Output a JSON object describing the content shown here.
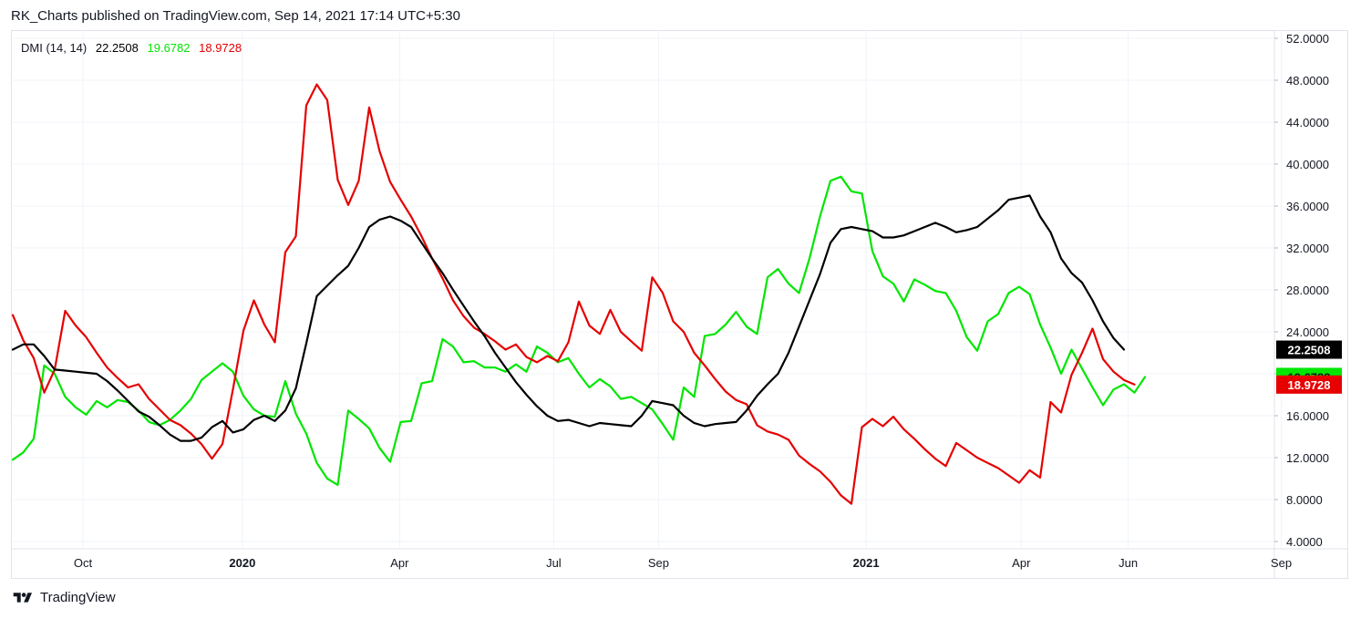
{
  "header": {
    "text": "RK_Charts published on TradingView.com, Sep 14, 2021 17:14 UTC+5:30"
  },
  "legend": {
    "name": "DMI (14, 14)",
    "adx": "22.2508",
    "plus_di": "19.6782",
    "minus_di": "18.9728"
  },
  "footer": {
    "brand": "TradingView"
  },
  "colors": {
    "adx": "#000000",
    "plus_di": "#00e600",
    "minus_di": "#e60000",
    "grid": "#f0f3fa",
    "border": "#e0e3eb"
  },
  "chart_data": {
    "type": "line",
    "ylim": [
      3,
      53
    ],
    "xlim": [
      0,
      140
    ],
    "yticks": [
      4,
      8,
      12,
      16,
      20,
      24,
      28,
      32,
      36,
      40,
      44,
      48,
      52
    ],
    "ytick_labels": [
      "4.0000",
      "8.0000",
      "12.0000",
      "16.0000",
      "20.0000",
      "24.0000",
      "28.0000",
      "32.0000",
      "36.0000",
      "40.0000",
      "44.0000",
      "48.0000",
      "52.0000"
    ],
    "xticks": [
      {
        "label": "Oct",
        "x": 6.7,
        "bold": false
      },
      {
        "label": "2020",
        "x": 21.9,
        "bold": true
      },
      {
        "label": "Apr",
        "x": 36.9,
        "bold": false
      },
      {
        "label": "Jul",
        "x": 51.6,
        "bold": false
      },
      {
        "label": "Sep",
        "x": 61.6,
        "bold": false
      },
      {
        "label": "2021",
        "x": 81.4,
        "bold": true
      },
      {
        "label": "Apr",
        "x": 96.2,
        "bold": false
      },
      {
        "label": "Jun",
        "x": 106.4,
        "bold": false
      },
      {
        "label": "Sep",
        "x": 121.0,
        "bold": false
      }
    ],
    "legend_position": "top-left",
    "grid": true,
    "series": [
      {
        "key": "adx",
        "values": [
          22.3,
          22.8,
          22.8,
          21.7,
          20.4,
          20.3,
          20.2,
          20.1,
          20.0,
          19.3,
          18.4,
          17.4,
          16.4,
          15.9,
          15.1,
          14.2,
          13.6,
          13.6,
          13.9,
          14.9,
          15.5,
          14.4,
          14.7,
          15.6,
          16.0,
          15.5,
          16.5,
          18.6,
          22.9,
          27.4,
          28.4,
          29.4,
          30.3,
          32.0,
          34.0,
          34.7,
          35.0,
          34.6,
          34.0,
          32.5,
          31.0,
          29.6,
          28.0,
          26.5,
          25.0,
          23.6,
          22.0,
          20.6,
          19.2,
          18.0,
          16.9,
          16.0,
          15.5,
          15.6,
          15.3,
          15.0,
          15.3,
          15.2,
          15.1,
          15.0,
          16.0,
          17.4,
          17.2,
          17.0,
          16.0,
          15.3,
          15.0,
          15.2,
          15.3,
          15.4,
          16.5,
          17.9,
          19.0,
          20.0,
          22.0,
          24.5,
          27.0,
          29.5,
          32.5,
          33.8,
          34.0,
          33.8,
          33.6,
          33.0,
          33.0,
          33.2,
          33.6,
          34.0,
          34.4,
          34.0,
          33.5,
          33.7,
          34.0,
          34.8,
          35.6,
          36.6,
          36.8,
          37.0,
          35.0,
          33.5,
          31.0,
          29.6,
          28.7,
          27.0,
          25.0,
          23.4,
          22.3
        ]
      },
      {
        "key": "plus_di",
        "values": [
          11.8,
          12.5,
          13.8,
          20.8,
          20.0,
          17.8,
          16.8,
          16.1,
          17.4,
          16.8,
          17.5,
          17.3,
          16.5,
          15.4,
          15.1,
          15.6,
          16.5,
          17.6,
          19.4,
          20.2,
          21.0,
          20.2,
          17.9,
          16.6,
          16.0,
          15.9,
          19.3,
          16.2,
          14.3,
          11.5,
          10.0,
          9.4,
          16.5,
          15.7,
          14.8,
          12.9,
          11.6,
          15.4,
          15.5,
          19.1,
          19.3,
          23.3,
          22.6,
          21.1,
          21.2,
          20.6,
          20.6,
          20.2,
          20.9,
          20.2,
          22.6,
          22.0,
          21.1,
          21.5,
          20.0,
          18.7,
          19.5,
          18.8,
          17.6,
          17.8,
          17.2,
          16.6,
          15.2,
          13.7,
          18.7,
          17.8,
          23.6,
          23.8,
          24.7,
          25.9,
          24.5,
          23.8,
          29.2,
          30.0,
          28.6,
          27.7,
          31.0,
          35.0,
          38.4,
          38.8,
          37.4,
          37.2,
          31.7,
          29.3,
          28.6,
          26.9,
          29.0,
          28.5,
          27.9,
          27.7,
          26.0,
          23.5,
          22.2,
          25.0,
          25.7,
          27.7,
          28.3,
          27.6,
          24.7,
          22.5,
          20.0,
          22.3,
          20.5,
          18.7,
          17.0,
          18.5,
          19.0,
          18.2,
          19.7
        ]
      },
      {
        "key": "minus_di",
        "values": [
          25.6,
          23.2,
          21.5,
          18.2,
          20.4,
          26.0,
          24.6,
          23.5,
          22.0,
          20.6,
          19.6,
          18.7,
          19.0,
          17.6,
          16.6,
          15.6,
          15.1,
          14.3,
          13.3,
          11.9,
          13.3,
          18.5,
          24.1,
          27.0,
          24.7,
          23.0,
          31.6,
          33.1,
          45.6,
          47.6,
          46.1,
          38.5,
          36.1,
          38.4,
          45.4,
          41.2,
          38.3,
          36.6,
          35.0,
          33.1,
          31.0,
          29.1,
          27.0,
          25.5,
          24.4,
          23.8,
          23.1,
          22.3,
          22.8,
          21.6,
          21.1,
          21.7,
          21.2,
          23.0,
          26.9,
          24.6,
          23.8,
          26.1,
          24.0,
          23.1,
          22.2,
          29.2,
          27.7,
          25.0,
          24.0,
          22.0,
          20.8,
          19.5,
          18.3,
          17.5,
          17.1,
          15.1,
          14.5,
          14.2,
          13.7,
          12.2,
          11.4,
          10.7,
          9.7,
          8.4,
          7.6,
          14.9,
          15.7,
          15.0,
          15.9,
          14.7,
          13.8,
          12.8,
          11.9,
          11.2,
          13.4,
          12.7,
          12.0,
          11.5,
          11.0,
          10.3,
          9.6,
          10.8,
          10.1,
          17.3,
          16.3,
          19.9,
          22.0,
          24.3,
          21.4,
          20.2,
          19.4,
          18.97
        ]
      }
    ]
  }
}
